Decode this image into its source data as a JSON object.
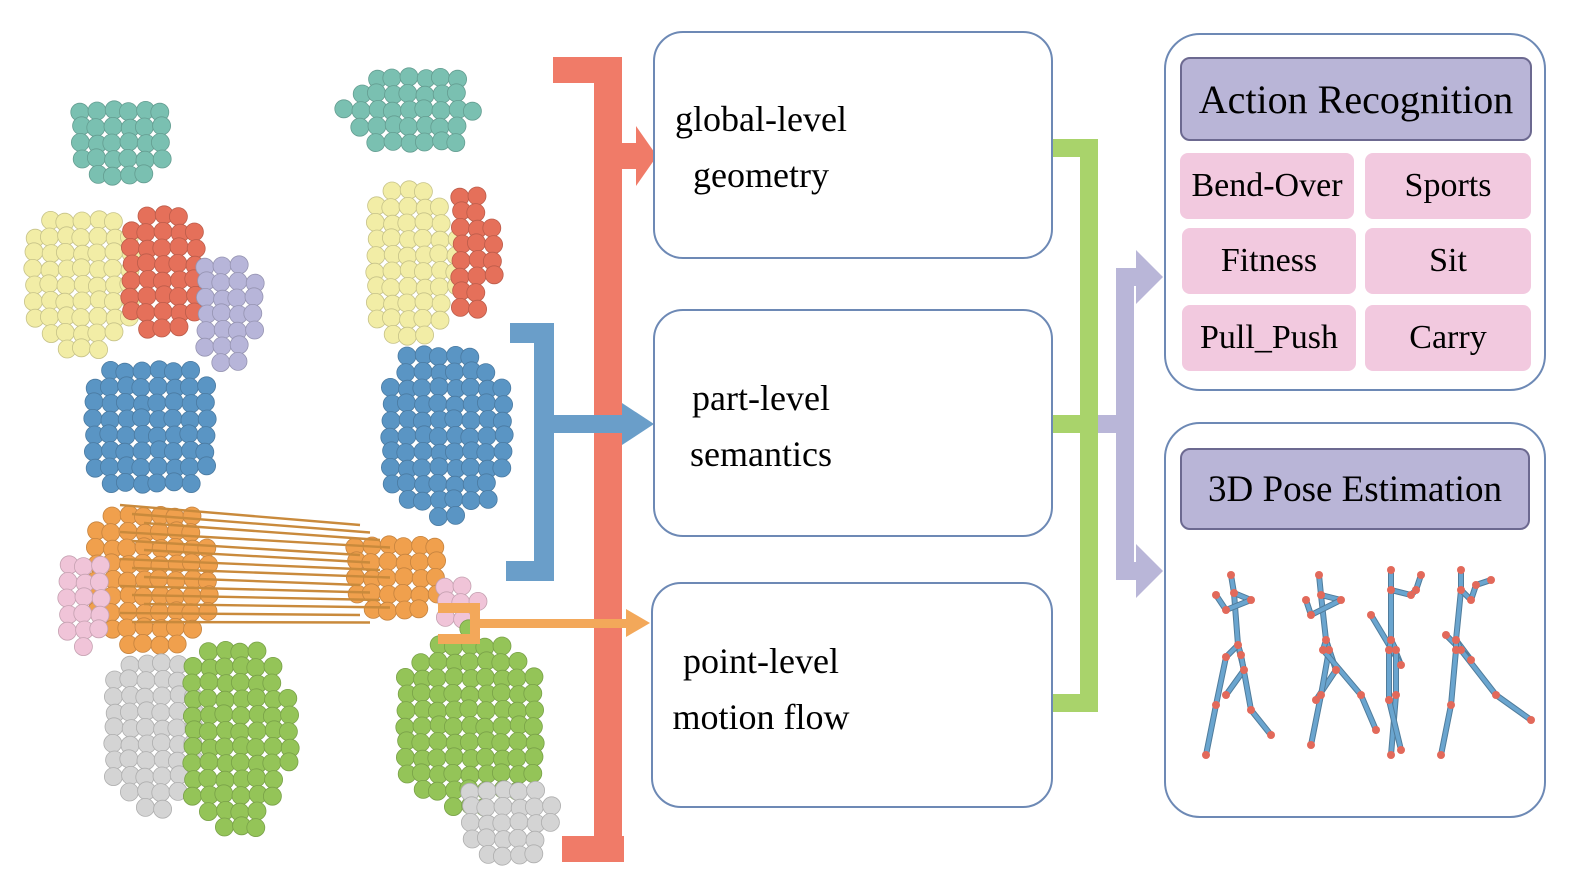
{
  "colors": {
    "head": "#7ac0b1",
    "torso": "#5a95c4",
    "chest_right": "#e5705a",
    "chest_left": "#f2eda6",
    "arm": "#b7b5d9",
    "hip": "#f0a04d",
    "hip_side": "#f0c4d8",
    "thigh": "#94c458",
    "foot": "#d4d4d4",
    "shin": "#8f62b3",
    "bracket_red": "#f07b68",
    "bracket_blue": "#6a9ec9",
    "bracket_orange": "#f3a85a",
    "bracket_green": "#a9d36b",
    "arrow_lavender": "#b9b6d8",
    "box_border": "#6d89b5",
    "skeleton_bone": "#6aa5cf",
    "skeleton_joint": "#e2695a"
  },
  "panels": [
    {
      "label_lines": [
        "global-level",
        "geometry"
      ],
      "figure": "single-color point cloud"
    },
    {
      "label_lines": [
        "part-level",
        "semantics"
      ],
      "figure": "part-colored point cloud"
    },
    {
      "label_lines": [
        "point-level",
        "motion flow"
      ],
      "figure": "point cloud with flow lines"
    }
  ],
  "action_recognition": {
    "title": "Action Recognition",
    "classes": [
      "Bend-Over",
      "Sports",
      "Fitness",
      "Sit",
      "Pull_Push",
      "Carry"
    ]
  },
  "pose_estimation": {
    "title": "3D Pose Estimation",
    "skeleton_count": 4
  }
}
